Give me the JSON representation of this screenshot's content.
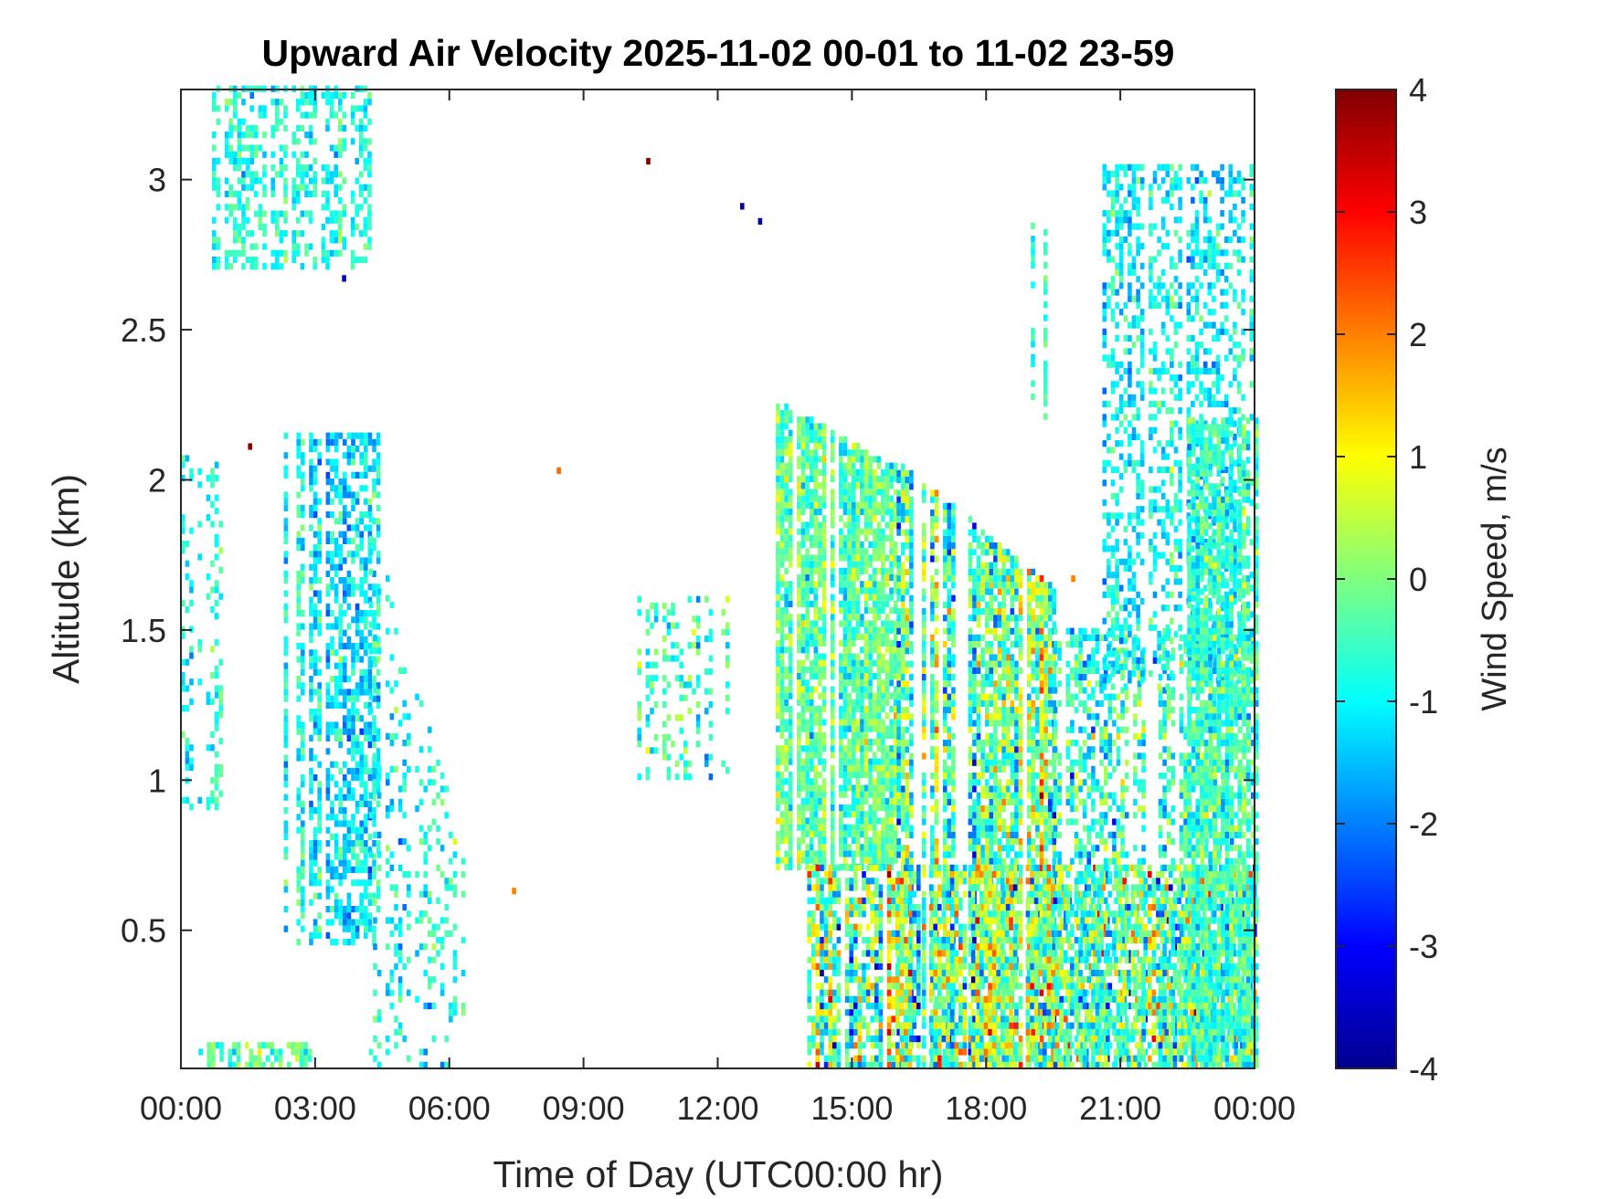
{
  "chart_data": {
    "type": "heatmap",
    "title": "Upward Air Velocity 2025-11-02 00-01 to 11-02 23-59",
    "xlabel": "Time of Day (UTC00:00 hr)",
    "ylabel": "Altitude (km)",
    "x_ticks": [
      "00:00",
      "03:00",
      "06:00",
      "09:00",
      "12:00",
      "15:00",
      "18:00",
      "21:00",
      "00:00"
    ],
    "x_tick_hours": [
      0,
      3,
      6,
      9,
      12,
      15,
      18,
      21,
      24
    ],
    "xlim_hours": [
      0,
      24
    ],
    "y_ticks": [
      "0.5",
      "1",
      "1.5",
      "2",
      "2.5",
      "3"
    ],
    "y_tick_values": [
      0.5,
      1,
      1.5,
      2,
      2.5,
      3
    ],
    "ylim": [
      0.04,
      3.3
    ],
    "colorbar": {
      "label": "Wind Speed, m/s",
      "ticks": [
        "-4",
        "-3",
        "-2",
        "-1",
        "0",
        "1",
        "2",
        "3",
        "4"
      ],
      "tick_values": [
        -4,
        -3,
        -2,
        -1,
        0,
        1,
        2,
        3,
        4
      ],
      "range": [
        -4,
        4
      ],
      "colormap": "jet"
    },
    "grid": false,
    "regions": [
      {
        "name": "upper-early-layer",
        "hour_start": 0.6,
        "hour_end": 4.2,
        "alt_bottom": 2.7,
        "alt_top": 3.3,
        "mean_speed": -0.8,
        "spread": 0.4,
        "density": 0.45
      },
      {
        "name": "early-scattered-column",
        "hour_start": 0.0,
        "hour_end": 0.9,
        "alt_bottom": 0.9,
        "alt_top": 2.1,
        "mean_speed": -0.9,
        "spread": 0.4,
        "density": 0.25
      },
      {
        "name": "early-cloud-column",
        "hour_start": 2.3,
        "hour_end": 4.4,
        "alt_bottom": 0.45,
        "alt_top": 2.15,
        "mean_speed": -1.1,
        "spread": 0.5,
        "density": 0.6
      },
      {
        "name": "early-descending-trail",
        "hour_start": 4.2,
        "hour_end": 6.3,
        "alt_bottom": 0.04,
        "alt_top": 1.9,
        "mean_speed": -0.8,
        "spread": 0.5,
        "density": 0.22
      },
      {
        "name": "late-morning-patch",
        "hour_start": 10.2,
        "hour_end": 12.2,
        "alt_bottom": 1.0,
        "alt_top": 1.6,
        "mean_speed": -0.4,
        "spread": 0.6,
        "density": 0.3
      },
      {
        "name": "afternoon-main-mass",
        "hour_start": 13.3,
        "hour_end": 16.0,
        "alt_bottom": 0.7,
        "alt_top": 2.2,
        "mean_speed": -0.3,
        "spread": 0.55,
        "density": 0.85
      },
      {
        "name": "afternoon-sloping-top",
        "hour_start": 16.0,
        "hour_end": 19.5,
        "alt_bottom": 0.04,
        "alt_top": 1.9,
        "mean_speed": -0.4,
        "spread": 0.9,
        "density": 0.8
      },
      {
        "name": "afternoon-surface-layer",
        "hour_start": 14.0,
        "hour_end": 24.0,
        "alt_bottom": 0.04,
        "alt_top": 0.7,
        "mean_speed": -0.1,
        "spread": 1.1,
        "density": 0.75
      },
      {
        "name": "evening-lower-mass",
        "hour_start": 19.5,
        "hour_end": 24.0,
        "alt_bottom": 0.04,
        "alt_top": 1.5,
        "mean_speed": -0.5,
        "spread": 0.7,
        "density": 0.5
      },
      {
        "name": "evening-upper-column",
        "hour_start": 20.6,
        "hour_end": 24.0,
        "alt_bottom": 1.3,
        "alt_top": 3.05,
        "mean_speed": -1.0,
        "spread": 0.45,
        "density": 0.4
      },
      {
        "name": "midnight-edge-column",
        "hour_start": 22.4,
        "hour_end": 24.0,
        "alt_bottom": 0.04,
        "alt_top": 2.2,
        "mean_speed": -0.6,
        "spread": 0.5,
        "density": 0.75
      },
      {
        "name": "isolated-upper-streak",
        "hour_start": 19.0,
        "hour_end": 19.3,
        "alt_bottom": 2.2,
        "alt_top": 2.85,
        "mean_speed": -0.7,
        "spread": 0.3,
        "density": 0.5
      },
      {
        "name": "early-surface-strip",
        "hour_start": 0.3,
        "hour_end": 2.9,
        "alt_bottom": 0.04,
        "alt_top": 0.12,
        "mean_speed": -0.2,
        "spread": 0.5,
        "density": 0.55
      }
    ],
    "isolated_points": [
      {
        "hour": 1.5,
        "alt": 2.1,
        "speed": 3.9
      },
      {
        "hour": 10.4,
        "alt": 3.05,
        "speed": 3.9
      },
      {
        "hour": 12.5,
        "alt": 2.9,
        "speed": -3.7
      },
      {
        "hour": 12.9,
        "alt": 2.85,
        "speed": -3.7
      },
      {
        "hour": 8.4,
        "alt": 2.02,
        "speed": 2.2
      },
      {
        "hour": 3.6,
        "alt": 2.66,
        "speed": -3.6
      },
      {
        "hour": 19.9,
        "alt": 1.66,
        "speed": 2.0
      },
      {
        "hour": 7.4,
        "alt": 0.62,
        "speed": 2.0
      }
    ]
  }
}
